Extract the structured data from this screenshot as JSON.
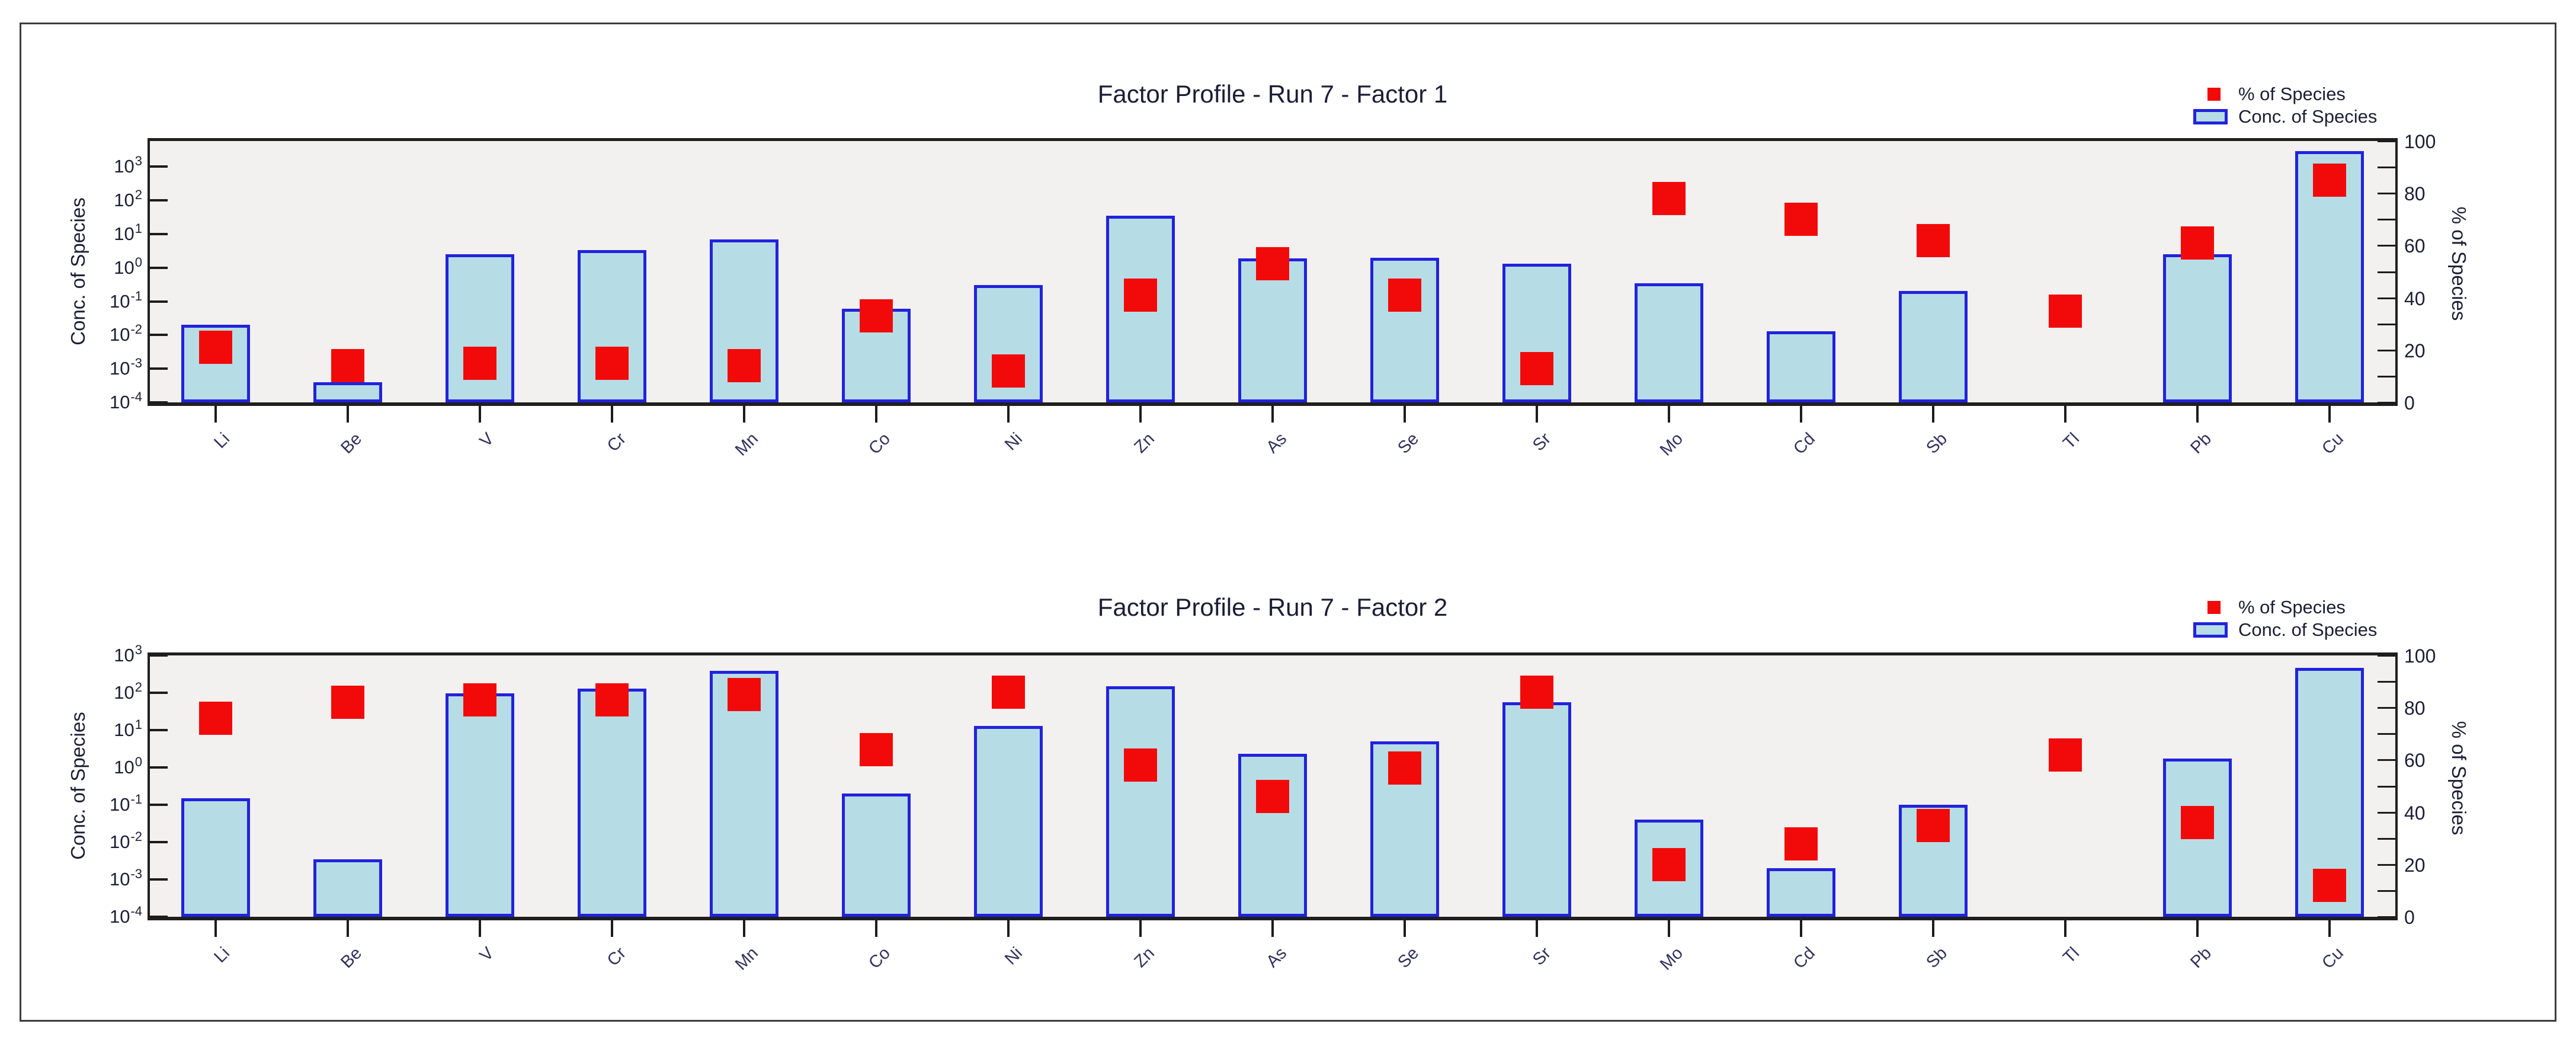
{
  "page": {
    "background": "#ffffff"
  },
  "frame": {
    "border_color": "#3c3c3c"
  },
  "palette": {
    "bar_fill": "#b6dde6",
    "bar_border": "#2222dd",
    "marker": "#f20a0a",
    "plot_background": "#f2f1ef",
    "axis_line": "#1f1f1f",
    "tick_text": "#1d1d35",
    "species_text": "#31315c"
  },
  "legend": {
    "marker_label": "% of Species",
    "bar_label": "Conc. of Species"
  },
  "chart_data": [
    {
      "type": "bar",
      "title": "Factor Profile - Run 7 - Factor 1",
      "xlabel": "",
      "ylabel_left": "Conc. of Species",
      "ylabel_right": "% of Species",
      "categories": [
        "Li",
        "Be",
        "V",
        "Cr",
        "Mn",
        "Co",
        "Ni",
        "Zn",
        "As",
        "Se",
        "Sr",
        "Mo",
        "Cd",
        "Sb",
        "Tl",
        "Pb",
        "Cu"
      ],
      "series": [
        {
          "name": "Conc. of Species",
          "type": "bar",
          "axis": "left-log",
          "values": [
            0.02,
            0.0004,
            2.5,
            3.3,
            7,
            0.06,
            0.3,
            35,
            1.9,
            2.0,
            1.3,
            0.35,
            0.013,
            0.2,
            null,
            2.5,
            2900
          ]
        },
        {
          "name": "% of Species",
          "type": "scatter-square",
          "axis": "right-linear",
          "values": [
            21,
            14,
            15,
            15,
            14,
            33,
            12,
            41,
            53,
            41,
            13,
            78,
            70,
            62,
            35,
            61,
            85
          ]
        }
      ],
      "left_axis": {
        "scale": "log",
        "tick_exponents": [
          3,
          2,
          1,
          0,
          -1,
          -2,
          -3,
          -4
        ],
        "ylim_log10": [
          -4,
          3.76
        ]
      },
      "right_axis": {
        "scale": "linear",
        "ticks": [
          100,
          80,
          60,
          40,
          20,
          0
        ],
        "minor_step": 10,
        "ylim": [
          0,
          100
        ]
      },
      "legend_position": "top-right",
      "grid": false
    },
    {
      "type": "bar",
      "title": "Factor Profile - Run 7 - Factor 2",
      "xlabel": "",
      "ylabel_left": "Conc. of Species",
      "ylabel_right": "% of Species",
      "categories": [
        "Li",
        "Be",
        "V",
        "Cr",
        "Mn",
        "Co",
        "Ni",
        "Zn",
        "As",
        "Se",
        "Sr",
        "Mo",
        "Cd",
        "Sb",
        "Tl",
        "Pb",
        "Cu"
      ],
      "series": [
        {
          "name": "Conc. of Species",
          "type": "bar",
          "axis": "left-log",
          "values": [
            0.15,
            0.0035,
            95,
            130,
            390,
            0.2,
            13,
            150,
            2.3,
            5,
            55,
            0.04,
            0.002,
            0.1,
            null,
            1.7,
            470
          ]
        },
        {
          "name": "% of Species",
          "type": "scatter-square",
          "axis": "right-linear",
          "values": [
            76,
            82,
            83,
            83,
            85,
            64,
            86,
            58,
            46,
            57,
            86,
            20,
            28,
            35,
            62,
            36,
            12
          ]
        }
      ],
      "left_axis": {
        "scale": "log",
        "tick_exponents": [
          3,
          2,
          1,
          0,
          -1,
          -2,
          -3,
          -4
        ],
        "ylim_log10": [
          -4,
          3.0
        ]
      },
      "right_axis": {
        "scale": "linear",
        "ticks": [
          100,
          80,
          60,
          40,
          20,
          0
        ],
        "minor_step": 10,
        "ylim": [
          0,
          100
        ]
      },
      "legend_position": "top-right",
      "grid": false
    }
  ]
}
